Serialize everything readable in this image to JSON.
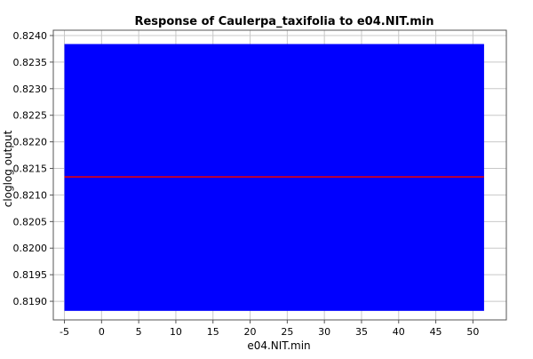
{
  "chart_data": {
    "type": "area",
    "title": "Response of Caulerpa_taxifolia to e04.NIT.min",
    "xlabel": "e04.NIT.min",
    "ylabel": "cloglog output",
    "xlim": [
      -6.5,
      54.5
    ],
    "ylim": [
      0.81865,
      0.8241
    ],
    "x_ticks": [
      -5,
      0,
      5,
      10,
      15,
      20,
      25,
      30,
      35,
      40,
      45,
      50
    ],
    "x_tick_labels": [
      "-5",
      "0",
      "5",
      "10",
      "15",
      "20",
      "25",
      "30",
      "35",
      "40",
      "45",
      "50"
    ],
    "y_ticks": [
      0.819,
      0.8195,
      0.82,
      0.8205,
      0.821,
      0.8215,
      0.822,
      0.8225,
      0.823,
      0.8235,
      0.824
    ],
    "y_tick_labels": [
      "0.8190",
      "0.8195",
      "0.8200",
      "0.8205",
      "0.8210",
      "0.8215",
      "0.8220",
      "0.8225",
      "0.8230",
      "0.8235",
      "0.8240"
    ],
    "grid": true,
    "band": {
      "x": [
        -5,
        51.5
      ],
      "lower": 0.81882,
      "upper": 0.82384,
      "color": "#0000ff"
    },
    "series": [
      {
        "x": [
          -5,
          51.5
        ],
        "y": [
          0.82134,
          0.82134
        ],
        "color": "#e0000f"
      }
    ]
  }
}
